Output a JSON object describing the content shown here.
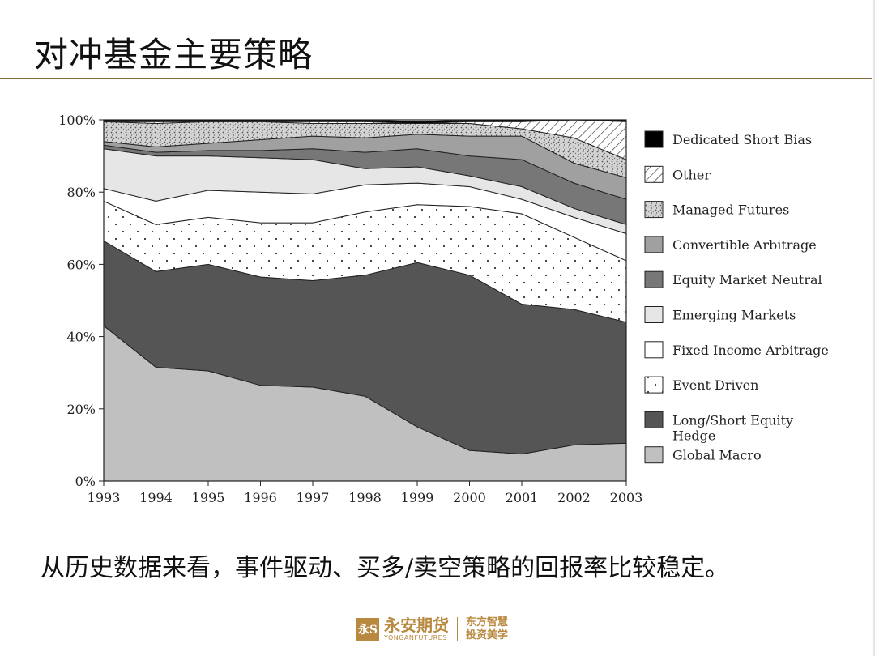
{
  "header": {
    "title": "对冲基金主要策略"
  },
  "caption": "从历史数据来看，事件驱动、买多/卖空策略的回报率比较稳定。",
  "footer": {
    "logo_mark": "永S",
    "logo_cn": "永安期货",
    "logo_en": "YONGANFUTURES",
    "slogan_line1": "东方智慧",
    "slogan_line2": "投资美学"
  },
  "colors": {
    "accent": "#8a6a3a",
    "brand": "#b8893f"
  },
  "chart_data": {
    "type": "area",
    "stacked": true,
    "normalized": true,
    "x": [
      "1993",
      "1994",
      "1995",
      "1996",
      "1997",
      "1998",
      "1999",
      "2000",
      "2001",
      "2002",
      "2003"
    ],
    "y_ticks": [
      "0%",
      "20%",
      "40%",
      "60%",
      "80%",
      "100%"
    ],
    "ylim": [
      0,
      100
    ],
    "legend_position": "right",
    "series": [
      {
        "name": "Global Macro",
        "fill": "#c0c0c0",
        "pattern": "solid",
        "values": [
          43,
          31.5,
          30.5,
          26.5,
          26,
          23.5,
          15,
          8.5,
          7.5,
          10,
          10.5
        ]
      },
      {
        "name": "Long/Short Equity Hedge",
        "fill": "#555555",
        "pattern": "solid",
        "values": [
          23.5,
          26.5,
          29.5,
          30,
          29.5,
          33.5,
          45.5,
          48.5,
          41.5,
          37.5,
          33.5
        ]
      },
      {
        "name": "Event Driven",
        "fill": "#ffffff",
        "pattern": "dots",
        "values": [
          11,
          13,
          13,
          15,
          16,
          17.5,
          16,
          19,
          25,
          20,
          17
        ]
      },
      {
        "name": "Fixed Income Arbitrage",
        "fill": "#ffffff",
        "pattern": "solid",
        "values": [
          3.5,
          6.5,
          7.5,
          8.5,
          8,
          7.5,
          6,
          5.5,
          4,
          5.5,
          7.5
        ]
      },
      {
        "name": "Emerging Markets",
        "fill": "#e6e6e6",
        "pattern": "solid",
        "values": [
          11,
          12.5,
          9.5,
          9.5,
          9.5,
          4.5,
          4.5,
          3,
          3.5,
          2.5,
          2.5
        ]
      },
      {
        "name": "Equity Market Neutral",
        "fill": "#777777",
        "pattern": "solid",
        "values": [
          1,
          1,
          1.5,
          2,
          3,
          4.5,
          5,
          5.5,
          7.5,
          7,
          7
        ]
      },
      {
        "name": "Convertible Arbitrage",
        "fill": "#a0a0a0",
        "pattern": "solid",
        "values": [
          1,
          1.5,
          2,
          3,
          3.5,
          4,
          4,
          5.5,
          6.5,
          5.5,
          6
        ]
      },
      {
        "name": "Managed Futures",
        "fill": "#d8d8d8",
        "pattern": "speckle",
        "values": [
          5.5,
          6.5,
          6,
          5,
          3.5,
          4,
          3,
          3.5,
          2,
          7,
          5
        ]
      },
      {
        "name": "Other",
        "fill": "#ffffff",
        "pattern": "hatch",
        "values": [
          0,
          0.5,
          0,
          0,
          0.5,
          0.5,
          0,
          0.5,
          2,
          5,
          10.5
        ]
      },
      {
        "name": "Dedicated Short Bias",
        "fill": "#000000",
        "pattern": "solid",
        "values": [
          0.5,
          0.5,
          0.5,
          0.5,
          0.5,
          0.5,
          0.5,
          0.5,
          0.5,
          0.5,
          0.5
        ]
      }
    ],
    "legend_order": [
      "Dedicated Short Bias",
      "Other",
      "Managed Futures",
      "Convertible Arbitrage",
      "Equity Market Neutral",
      "Emerging Markets",
      "Fixed Income Arbitrage",
      "Event Driven",
      "Long/Short Equity Hedge",
      "Global Macro"
    ]
  }
}
